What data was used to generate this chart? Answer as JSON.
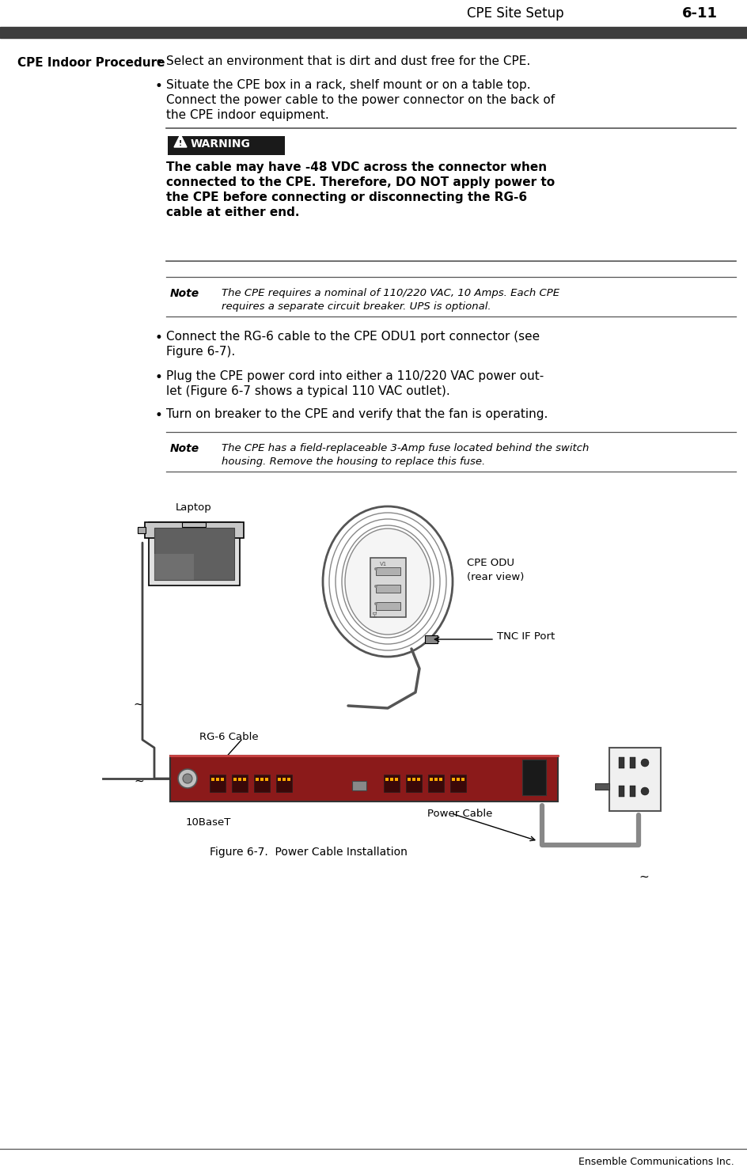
{
  "page_title": "CPE Site Setup",
  "page_number": "6-11",
  "header_bar_color": "#3d3d3d",
  "footer_text": "Ensemble Communications Inc.",
  "section_title": "CPE Indoor Procedure",
  "bullet1": "Select an environment that is dirt and dust free for the CPE.",
  "bullet2_line1": "Situate the CPE box in a rack, shelf mount or on a table top.",
  "bullet2_line2": "Connect the power cable to the power connector on the back of",
  "bullet2_line3": "the CPE indoor equipment.",
  "warning_bg": "#1a1a1a",
  "warning_label": "WARNING",
  "warning_text_line1": "The cable may have -48 VDC across the connector when",
  "warning_text_line2": "connected to the CPE. Therefore, DO NOT apply power to",
  "warning_text_line3": "the CPE before connecting or disconnecting the RG-6",
  "warning_text_line4": "cable at either end.",
  "note1_label": "Note",
  "note1_text_line1": "The CPE requires a nominal of 110/220 VAC, 10 Amps. Each CPE",
  "note1_text_line2": "requires a separate circuit breaker. UPS is optional.",
  "bullet3_line1": "Connect the RG-6 cable to the CPE ODU1 port connector (see",
  "bullet3_line2": "Figure 6-7).",
  "bullet4_line1": "Plug the CPE power cord into either a 110/220 VAC power out-",
  "bullet4_line2": "let (Figure 6-7 shows a typical 110 VAC outlet).",
  "bullet5": "Turn on breaker to the CPE and verify that the fan is operating.",
  "note2_label": "Note",
  "note2_text_line1": "The CPE has a field-replaceable 3-Amp fuse located behind the switch",
  "note2_text_line2": "housing. Remove the housing to replace this fuse.",
  "figure_caption": "Figure 6-7.  Power Cable Installation",
  "label_laptop": "Laptop",
  "label_cpe_odu": "CPE ODU",
  "label_cpe_odu2": "(rear view)",
  "label_tnc": "TNC IF Port",
  "label_rg6": "RG-6 Cable",
  "label_10base": "10BaseT",
  "label_power": "Power Cable",
  "bg_color": "#ffffff",
  "text_color": "#000000",
  "cpe_box_color": "#8B1A1A",
  "cpe_box_dark": "#6a1010"
}
